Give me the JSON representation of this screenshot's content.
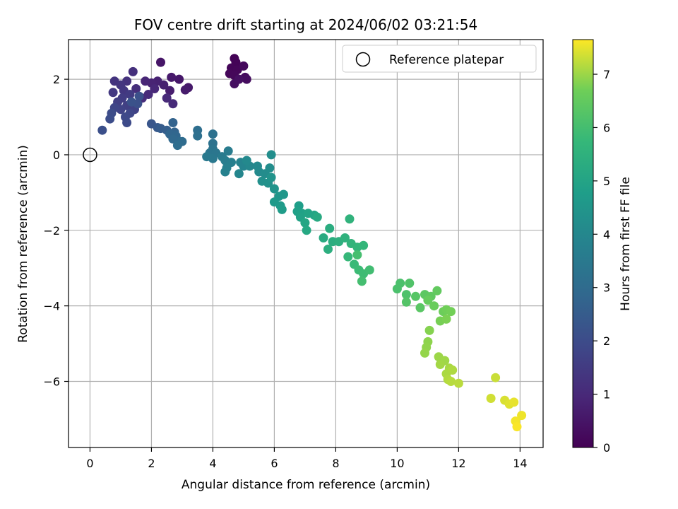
{
  "chart_data": {
    "type": "scatter",
    "title": "FOV centre drift starting at 2024/06/02 03:21:54",
    "xlabel": "Angular distance from reference (arcmin)",
    "ylabel": "Rotation from reference (arcmin)",
    "xlim": [
      -0.7,
      14.75
    ],
    "ylim": [
      -7.75,
      3.05
    ],
    "xticks": [
      0,
      2,
      4,
      6,
      8,
      10,
      12,
      14
    ],
    "yticks": [
      -6,
      -4,
      -2,
      0,
      2
    ],
    "grid": true,
    "legend": {
      "location": "upper right",
      "entries": [
        "Reference platepar"
      ]
    },
    "reference_point": {
      "x": 0,
      "y": 0
    },
    "colorbar": {
      "label": "Hours from first FF file",
      "colormap": "viridis",
      "range": [
        0,
        7.65
      ],
      "ticks": [
        0,
        1,
        2,
        3,
        4,
        5,
        6,
        7
      ]
    },
    "points": [
      {
        "x": 4.7,
        "y": 2.55,
        "t": 0.05
      },
      {
        "x": 4.75,
        "y": 2.45,
        "t": 0.08
      },
      {
        "x": 4.6,
        "y": 2.3,
        "t": 0.1
      },
      {
        "x": 4.8,
        "y": 2.25,
        "t": 0.12
      },
      {
        "x": 4.55,
        "y": 2.15,
        "t": 0.14
      },
      {
        "x": 4.7,
        "y": 2.1,
        "t": 0.16
      },
      {
        "x": 5.0,
        "y": 2.35,
        "t": 0.2
      },
      {
        "x": 5.05,
        "y": 2.05,
        "t": 0.25
      },
      {
        "x": 5.1,
        "y": 2.0,
        "t": 0.3
      },
      {
        "x": 4.7,
        "y": 1.88,
        "t": 0.35
      },
      {
        "x": 4.85,
        "y": 2.0,
        "t": 0.38
      },
      {
        "x": 2.3,
        "y": 2.45,
        "t": 0.5
      },
      {
        "x": 2.9,
        "y": 2.0,
        "t": 0.55
      },
      {
        "x": 2.65,
        "y": 2.05,
        "t": 0.6
      },
      {
        "x": 3.2,
        "y": 1.78,
        "t": 0.62
      },
      {
        "x": 3.1,
        "y": 1.72,
        "t": 0.65
      },
      {
        "x": 2.6,
        "y": 1.7,
        "t": 0.7
      },
      {
        "x": 2.4,
        "y": 1.85,
        "t": 0.75
      },
      {
        "x": 2.2,
        "y": 1.95,
        "t": 0.8
      },
      {
        "x": 2.0,
        "y": 1.9,
        "t": 0.85
      },
      {
        "x": 1.8,
        "y": 1.95,
        "t": 0.9
      },
      {
        "x": 2.1,
        "y": 1.75,
        "t": 0.95
      },
      {
        "x": 2.5,
        "y": 1.5,
        "t": 1.0
      },
      {
        "x": 2.7,
        "y": 1.35,
        "t": 1.02
      },
      {
        "x": 1.9,
        "y": 1.6,
        "t": 1.05
      },
      {
        "x": 1.7,
        "y": 1.5,
        "t": 1.1
      },
      {
        "x": 1.5,
        "y": 1.75,
        "t": 1.15
      },
      {
        "x": 1.4,
        "y": 2.2,
        "t": 1.2
      },
      {
        "x": 1.2,
        "y": 1.95,
        "t": 1.25
      },
      {
        "x": 0.8,
        "y": 1.95,
        "t": 1.3
      },
      {
        "x": 1.0,
        "y": 1.85,
        "t": 1.35
      },
      {
        "x": 1.1,
        "y": 1.7,
        "t": 1.4
      },
      {
        "x": 0.75,
        "y": 1.65,
        "t": 1.45
      },
      {
        "x": 1.3,
        "y": 1.6,
        "t": 1.5
      },
      {
        "x": 1.05,
        "y": 1.5,
        "t": 1.55
      },
      {
        "x": 0.9,
        "y": 1.4,
        "t": 1.6
      },
      {
        "x": 1.2,
        "y": 1.3,
        "t": 1.65
      },
      {
        "x": 1.45,
        "y": 1.2,
        "t": 1.7
      },
      {
        "x": 1.0,
        "y": 1.2,
        "t": 1.75
      },
      {
        "x": 0.8,
        "y": 1.25,
        "t": 1.8
      },
      {
        "x": 1.3,
        "y": 1.1,
        "t": 1.85
      },
      {
        "x": 1.15,
        "y": 1.0,
        "t": 1.9
      },
      {
        "x": 1.2,
        "y": 0.85,
        "t": 1.95
      },
      {
        "x": 0.7,
        "y": 1.1,
        "t": 2.0
      },
      {
        "x": 0.65,
        "y": 0.95,
        "t": 2.05
      },
      {
        "x": 0.4,
        "y": 0.65,
        "t": 2.1
      },
      {
        "x": 1.55,
        "y": 1.35,
        "t": 2.12
      },
      {
        "x": 1.6,
        "y": 1.55,
        "t": 2.15
      },
      {
        "x": 1.35,
        "y": 1.4,
        "t": 2.18
      },
      {
        "x": 2.0,
        "y": 0.82,
        "t": 2.3
      },
      {
        "x": 2.2,
        "y": 0.72,
        "t": 2.4
      },
      {
        "x": 2.3,
        "y": 0.7,
        "t": 2.5
      },
      {
        "x": 2.5,
        "y": 0.65,
        "t": 2.6
      },
      {
        "x": 2.7,
        "y": 0.85,
        "t": 2.7
      },
      {
        "x": 2.75,
        "y": 0.6,
        "t": 2.75
      },
      {
        "x": 2.6,
        "y": 0.55,
        "t": 2.8
      },
      {
        "x": 2.8,
        "y": 0.5,
        "t": 2.85
      },
      {
        "x": 2.7,
        "y": 0.42,
        "t": 2.9
      },
      {
        "x": 2.9,
        "y": 0.35,
        "t": 2.95
      },
      {
        "x": 3.0,
        "y": 0.35,
        "t": 3.0
      },
      {
        "x": 2.85,
        "y": 0.25,
        "t": 3.05
      },
      {
        "x": 3.5,
        "y": 0.65,
        "t": 3.1
      },
      {
        "x": 3.5,
        "y": 0.5,
        "t": 3.15
      },
      {
        "x": 4.0,
        "y": 0.55,
        "t": 3.2
      },
      {
        "x": 4.0,
        "y": 0.3,
        "t": 3.25
      },
      {
        "x": 4.0,
        "y": 0.15,
        "t": 3.3
      },
      {
        "x": 3.9,
        "y": 0.05,
        "t": 3.35
      },
      {
        "x": 4.1,
        "y": 0.05,
        "t": 3.4
      },
      {
        "x": 4.0,
        "y": -0.1,
        "t": 3.45
      },
      {
        "x": 3.8,
        "y": -0.05,
        "t": 3.5
      },
      {
        "x": 4.3,
        "y": -0.05,
        "t": 3.55
      },
      {
        "x": 4.5,
        "y": 0.1,
        "t": 3.6
      },
      {
        "x": 4.4,
        "y": -0.15,
        "t": 3.65
      },
      {
        "x": 4.6,
        "y": -0.2,
        "t": 3.7
      },
      {
        "x": 4.45,
        "y": -0.35,
        "t": 3.75
      },
      {
        "x": 4.4,
        "y": -0.45,
        "t": 3.8
      },
      {
        "x": 4.9,
        "y": -0.2,
        "t": 3.85
      },
      {
        "x": 5.0,
        "y": -0.3,
        "t": 3.9
      },
      {
        "x": 4.85,
        "y": -0.5,
        "t": 3.95
      },
      {
        "x": 5.2,
        "y": -0.3,
        "t": 4.0
      },
      {
        "x": 5.45,
        "y": -0.3,
        "t": 4.05
      },
      {
        "x": 5.1,
        "y": -0.15,
        "t": 4.07
      },
      {
        "x": 5.5,
        "y": -0.45,
        "t": 4.1
      },
      {
        "x": 5.7,
        "y": -0.5,
        "t": 4.15
      },
      {
        "x": 5.85,
        "y": -0.35,
        "t": 4.2
      },
      {
        "x": 5.9,
        "y": 0.0,
        "t": 4.25
      },
      {
        "x": 5.6,
        "y": -0.7,
        "t": 4.3
      },
      {
        "x": 5.8,
        "y": -0.75,
        "t": 4.35
      },
      {
        "x": 5.9,
        "y": -0.6,
        "t": 4.4
      },
      {
        "x": 6.0,
        "y": -0.9,
        "t": 4.45
      },
      {
        "x": 6.15,
        "y": -1.1,
        "t": 4.5
      },
      {
        "x": 6.3,
        "y": -1.05,
        "t": 4.55
      },
      {
        "x": 6.0,
        "y": -1.25,
        "t": 4.6
      },
      {
        "x": 6.2,
        "y": -1.35,
        "t": 4.65
      },
      {
        "x": 6.25,
        "y": -1.45,
        "t": 4.7
      },
      {
        "x": 6.8,
        "y": -1.35,
        "t": 4.8
      },
      {
        "x": 6.75,
        "y": -1.5,
        "t": 4.85
      },
      {
        "x": 6.9,
        "y": -1.55,
        "t": 4.9
      },
      {
        "x": 6.85,
        "y": -1.65,
        "t": 4.95
      },
      {
        "x": 7.1,
        "y": -1.55,
        "t": 5.0
      },
      {
        "x": 7.3,
        "y": -1.6,
        "t": 5.05
      },
      {
        "x": 7.0,
        "y": -1.8,
        "t": 5.1
      },
      {
        "x": 7.05,
        "y": -2.0,
        "t": 5.15
      },
      {
        "x": 7.4,
        "y": -1.65,
        "t": 5.2
      },
      {
        "x": 7.6,
        "y": -2.2,
        "t": 5.25
      },
      {
        "x": 7.8,
        "y": -1.95,
        "t": 5.3
      },
      {
        "x": 7.9,
        "y": -2.3,
        "t": 5.35
      },
      {
        "x": 7.75,
        "y": -2.5,
        "t": 5.4
      },
      {
        "x": 8.1,
        "y": -2.3,
        "t": 5.45
      },
      {
        "x": 8.3,
        "y": -2.2,
        "t": 5.5
      },
      {
        "x": 8.45,
        "y": -1.7,
        "t": 5.55
      },
      {
        "x": 8.5,
        "y": -2.35,
        "t": 5.6
      },
      {
        "x": 8.7,
        "y": -2.45,
        "t": 5.65
      },
      {
        "x": 8.9,
        "y": -2.4,
        "t": 5.7
      },
      {
        "x": 8.4,
        "y": -2.7,
        "t": 5.75
      },
      {
        "x": 8.6,
        "y": -2.9,
        "t": 5.8
      },
      {
        "x": 8.75,
        "y": -3.05,
        "t": 5.85
      },
      {
        "x": 8.9,
        "y": -3.15,
        "t": 5.9
      },
      {
        "x": 9.1,
        "y": -3.05,
        "t": 5.95
      },
      {
        "x": 8.85,
        "y": -3.35,
        "t": 6.0
      },
      {
        "x": 8.7,
        "y": -2.65,
        "t": 6.02
      },
      {
        "x": 10.0,
        "y": -3.55,
        "t": 6.1
      },
      {
        "x": 10.1,
        "y": -3.4,
        "t": 6.12
      },
      {
        "x": 10.3,
        "y": -3.7,
        "t": 6.15
      },
      {
        "x": 10.4,
        "y": -3.4,
        "t": 6.2
      },
      {
        "x": 10.3,
        "y": -3.9,
        "t": 6.25
      },
      {
        "x": 10.6,
        "y": -3.75,
        "t": 6.3
      },
      {
        "x": 10.75,
        "y": -4.05,
        "t": 6.35
      },
      {
        "x": 10.9,
        "y": -3.7,
        "t": 6.4
      },
      {
        "x": 11.1,
        "y": -3.75,
        "t": 6.45
      },
      {
        "x": 11.3,
        "y": -3.6,
        "t": 6.5
      },
      {
        "x": 11.0,
        "y": -3.85,
        "t": 6.55
      },
      {
        "x": 11.2,
        "y": -4.0,
        "t": 6.6
      },
      {
        "x": 11.5,
        "y": -4.15,
        "t": 6.65
      },
      {
        "x": 11.6,
        "y": -4.1,
        "t": 6.7
      },
      {
        "x": 11.75,
        "y": -4.15,
        "t": 6.72
      },
      {
        "x": 11.4,
        "y": -4.4,
        "t": 6.75
      },
      {
        "x": 11.6,
        "y": -4.35,
        "t": 6.78
      },
      {
        "x": 11.05,
        "y": -4.65,
        "t": 6.85
      },
      {
        "x": 11.0,
        "y": -4.95,
        "t": 6.9
      },
      {
        "x": 10.95,
        "y": -5.1,
        "t": 6.92
      },
      {
        "x": 10.9,
        "y": -5.25,
        "t": 6.95
      },
      {
        "x": 11.35,
        "y": -5.35,
        "t": 7.0
      },
      {
        "x": 11.55,
        "y": -5.45,
        "t": 7.02
      },
      {
        "x": 11.4,
        "y": -5.55,
        "t": 7.05
      },
      {
        "x": 11.7,
        "y": -5.65,
        "t": 7.08
      },
      {
        "x": 11.6,
        "y": -5.8,
        "t": 7.1
      },
      {
        "x": 11.8,
        "y": -5.7,
        "t": 7.12
      },
      {
        "x": 11.65,
        "y": -5.95,
        "t": 7.15
      },
      {
        "x": 11.75,
        "y": -6.0,
        "t": 7.18
      },
      {
        "x": 12.0,
        "y": -6.05,
        "t": 7.2
      },
      {
        "x": 13.2,
        "y": -5.9,
        "t": 7.3
      },
      {
        "x": 13.05,
        "y": -6.45,
        "t": 7.35
      },
      {
        "x": 13.5,
        "y": -6.5,
        "t": 7.4
      },
      {
        "x": 13.65,
        "y": -6.6,
        "t": 7.45
      },
      {
        "x": 13.8,
        "y": -6.55,
        "t": 7.5
      },
      {
        "x": 14.05,
        "y": -6.9,
        "t": 7.55
      },
      {
        "x": 13.85,
        "y": -7.05,
        "t": 7.58
      },
      {
        "x": 13.9,
        "y": -7.2,
        "t": 7.62
      }
    ]
  }
}
